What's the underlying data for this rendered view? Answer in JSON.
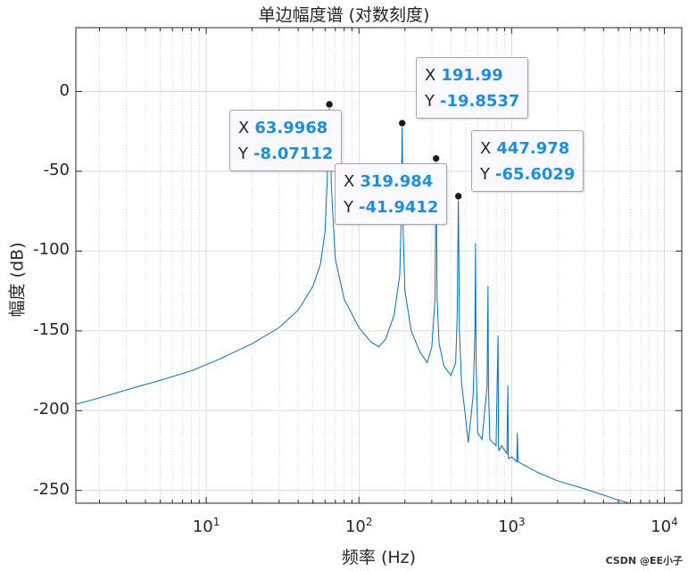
{
  "chart_data": {
    "type": "line",
    "title": "单边幅度谱 (对数刻度)",
    "xlabel": "频率 (Hz)",
    "ylabel": "幅度 (dB)",
    "xscale": "log",
    "xlim": [
      1.4,
      13000
    ],
    "ylim": [
      -258,
      40
    ],
    "yticks": [
      "0",
      "-50",
      "-100",
      "-150",
      "-200",
      "-250"
    ],
    "ytick_values": [
      0,
      -50,
      -100,
      -150,
      -200,
      -250
    ],
    "xticks": [
      {
        "base": "10",
        "exp": "1",
        "value": 10
      },
      {
        "base": "10",
        "exp": "2",
        "value": 100
      },
      {
        "base": "10",
        "exp": "3",
        "value": 1000
      },
      {
        "base": "10",
        "exp": "4",
        "value": 10000
      }
    ],
    "grid": true,
    "series": [
      {
        "color": "#0072bd",
        "x": [
          1.4,
          2,
          3,
          5,
          8,
          12,
          20,
          30,
          40,
          50,
          56,
          60,
          62,
          63,
          63.9968,
          65,
          66,
          70,
          80,
          100,
          120,
          135,
          150,
          170,
          185,
          189,
          191.99,
          195,
          200,
          220,
          250,
          280,
          300,
          315,
          319.984,
          325,
          335,
          360,
          400,
          430,
          440,
          447.978,
          455,
          470,
          500,
          520,
          560,
          575,
          580,
          585,
          600,
          640,
          690,
          700,
          705,
          720,
          790,
          815,
          820,
          825,
          860,
          930,
          945,
          950,
          955,
          1000,
          1080,
          1090,
          1100,
          1200,
          1500,
          2000,
          3000,
          5000,
          7000
        ],
        "y": [
          -196,
          -192,
          -187,
          -181,
          -175,
          -168,
          -158,
          -148,
          -137,
          -122,
          -108,
          -88,
          -55,
          -30,
          -8.07112,
          -30,
          -60,
          -105,
          -130,
          -148,
          -157,
          -160,
          -155,
          -140,
          -115,
          -80,
          -19.8537,
          -90,
          -125,
          -150,
          -163,
          -170,
          -160,
          -130,
          -41.9412,
          -130,
          -158,
          -172,
          -178,
          -170,
          -140,
          -65.6029,
          -150,
          -183,
          -205,
          -220,
          -190,
          -150,
          -95,
          -170,
          -214,
          -218,
          -185,
          -122,
          -185,
          -218,
          -222,
          -153,
          -222,
          -225,
          -222,
          -227,
          -184,
          -227,
          -230,
          -229,
          -232,
          -214,
          -232,
          -234,
          -239,
          -244,
          -249,
          -256,
          -260
        ]
      }
    ],
    "datatips": [
      {
        "x": "63.9968",
        "y": "-8.07112",
        "xv": 63.9968,
        "yv": -8.07112
      },
      {
        "x": "191.99",
        "y": "-19.8537",
        "xv": 191.99,
        "yv": -19.8537
      },
      {
        "x": "319.984",
        "y": "-41.9412",
        "xv": 319.984,
        "yv": -41.9412
      },
      {
        "x": "447.978",
        "y": "-65.6029",
        "xv": 447.978,
        "yv": -65.6029
      }
    ],
    "datatip_labels": {
      "x": "X",
      "y": "Y"
    }
  },
  "watermark": "CSDN @EE小子"
}
